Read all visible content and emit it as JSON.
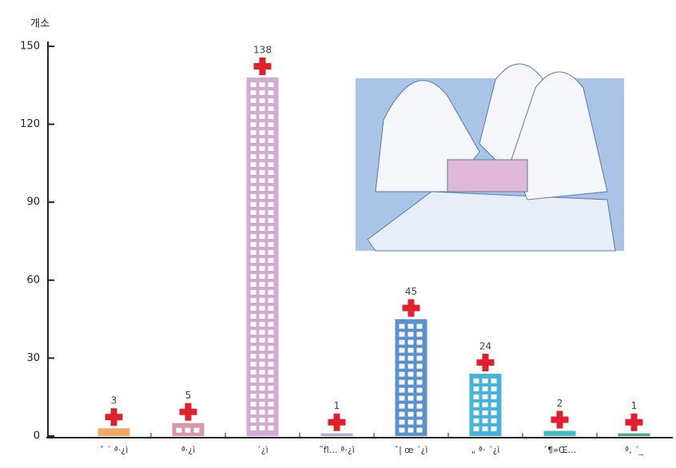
{
  "chart_data": {
    "type": "bar",
    "y_label": "개소",
    "categories": [
      "ˇ ˙ ª·¿ì",
      "ª·¿ì",
      "´¿ì",
      "˜fl… ª·¿ì",
      "¯| œ ´¿ì",
      "„ ª· ´¿ì",
      "´¶»Œ…",
      "ª‚ ´_"
    ],
    "values": [
      3,
      5,
      138,
      1,
      45,
      24,
      2,
      1
    ],
    "colors": [
      "#f0a868",
      "#d898a8",
      "#d4aad4",
      "#b8a4d8",
      "#5a90cc",
      "#44b4d8",
      "#44bcc4",
      "#40a888"
    ],
    "ylim": [
      0,
      150
    ],
    "yticks": [
      0,
      30,
      60,
      90,
      120,
      150
    ]
  }
}
